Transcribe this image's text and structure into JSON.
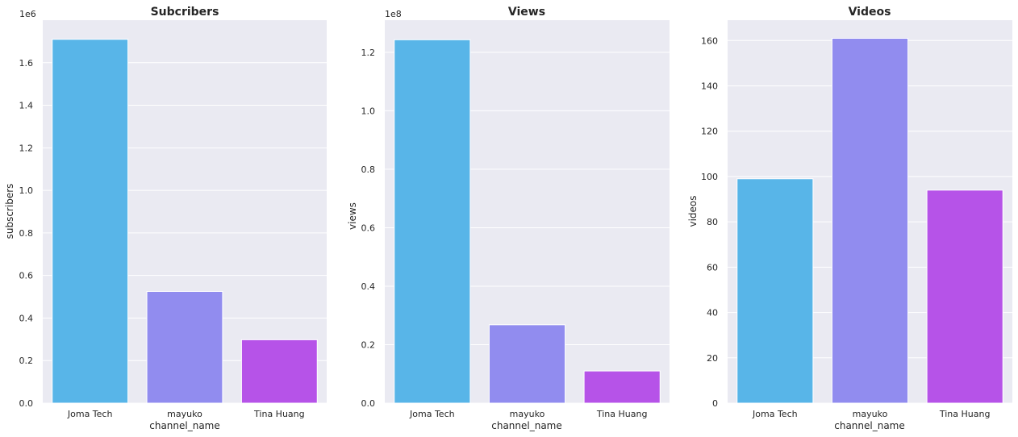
{
  "chart_data": [
    {
      "type": "bar",
      "title": "Subcribers",
      "xlabel": "channel_name",
      "ylabel": "subscribers",
      "offset_label": "1e6",
      "categories": [
        "Joma Tech",
        "mayuko",
        "Tina Huang"
      ],
      "values": [
        1.71,
        0.525,
        0.298
      ],
      "ylim": [
        0,
        1.8
      ],
      "yticks": [
        0.0,
        0.2,
        0.4,
        0.6,
        0.8,
        1.0,
        1.2,
        1.4,
        1.6
      ],
      "ytick_labels": [
        "0.0",
        "0.2",
        "0.4",
        "0.6",
        "0.8",
        "1.0",
        "1.2",
        "1.4",
        "1.6"
      ],
      "colors": [
        "#58b5e8",
        "#918cef",
        "#b653e8"
      ],
      "grid": true
    },
    {
      "type": "bar",
      "title": "Views",
      "xlabel": "channel_name",
      "ylabel": "views",
      "offset_label": "1e8",
      "categories": [
        "Joma Tech",
        "mayuko",
        "Tina Huang"
      ],
      "values": [
        1.243,
        0.268,
        0.11
      ],
      "ylim": [
        0,
        1.31
      ],
      "yticks": [
        0.0,
        0.2,
        0.4,
        0.6,
        0.8,
        1.0,
        1.2
      ],
      "ytick_labels": [
        "0.0",
        "0.2",
        "0.4",
        "0.6",
        "0.8",
        "1.0",
        "1.2"
      ],
      "colors": [
        "#58b5e8",
        "#918cef",
        "#b653e8"
      ],
      "grid": true
    },
    {
      "type": "bar",
      "title": "Videos",
      "xlabel": "channel_name",
      "ylabel": "videos",
      "offset_label": "",
      "categories": [
        "Joma Tech",
        "mayuko",
        "Tina Huang"
      ],
      "values": [
        99,
        161,
        94
      ],
      "ylim": [
        0,
        169
      ],
      "yticks": [
        0,
        20,
        40,
        60,
        80,
        100,
        120,
        140,
        160
      ],
      "ytick_labels": [
        "0",
        "20",
        "40",
        "60",
        "80",
        "100",
        "120",
        "140",
        "160"
      ],
      "colors": [
        "#58b5e8",
        "#918cef",
        "#b653e8"
      ],
      "grid": true
    }
  ]
}
